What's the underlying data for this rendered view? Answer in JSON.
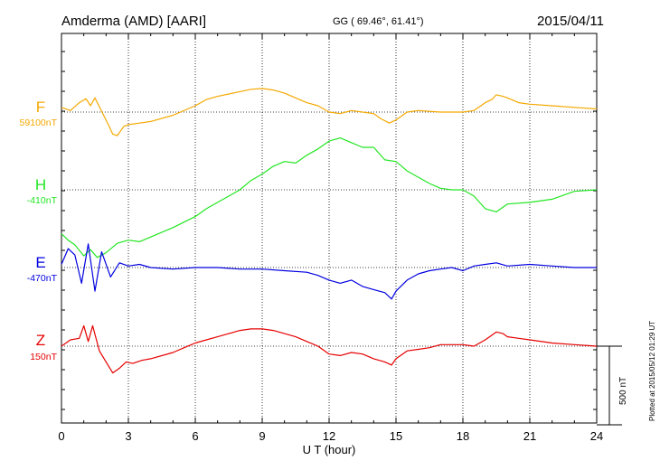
{
  "header": {
    "station": "Amderma (AMD)  [AARI]",
    "coords": "GG ( 69.46°,  61.41°)",
    "date": "2015/04/11"
  },
  "side_note": "Plotted at 2015/05/12 01:29 UT",
  "chart_data": {
    "type": "line",
    "xlabel": "U T (hour)",
    "xlim": [
      0,
      24
    ],
    "x_ticks": [
      0,
      3,
      6,
      9,
      12,
      15,
      18,
      21,
      24
    ],
    "scale_bar_label": "500 nT",
    "scale_bar_nT": 500,
    "grid": true,
    "series": [
      {
        "name": "F",
        "baseline_label": "59100nT",
        "color": "#f5a800",
        "x": [
          0,
          0.4,
          0.8,
          1.1,
          1.3,
          1.5,
          1.8,
          2.1,
          2.3,
          2.5,
          2.8,
          3.0,
          3.5,
          4,
          5,
          6,
          6.5,
          7,
          8,
          8.5,
          9,
          9.5,
          10,
          10.5,
          11,
          11.5,
          12,
          12.5,
          13,
          13.5,
          14,
          14.3,
          14.7,
          15,
          15.5,
          16,
          17,
          18,
          18.5,
          19,
          19.3,
          19.5,
          19.8,
          20,
          20.5,
          21,
          22,
          23,
          24
        ],
        "y": [
          30,
          10,
          60,
          85,
          40,
          90,
          5,
          -80,
          -140,
          -150,
          -90,
          -80,
          -70,
          -60,
          -20,
          40,
          80,
          100,
          130,
          145,
          150,
          140,
          120,
          90,
          60,
          40,
          0,
          -10,
          10,
          0,
          -10,
          -40,
          -70,
          -50,
          0,
          10,
          0,
          0,
          10,
          60,
          80,
          110,
          100,
          90,
          60,
          50,
          40,
          30,
          20
        ]
      },
      {
        "name": "H",
        "baseline_label": "-410nT",
        "color": "#22e622",
        "x": [
          0,
          0.3,
          0.6,
          1.0,
          1.3,
          1.6,
          2.0,
          2.5,
          3.0,
          3.5,
          4,
          5,
          6,
          6.5,
          7,
          7.5,
          8,
          8.5,
          9,
          9.5,
          10,
          10.5,
          11,
          11.5,
          12,
          12.5,
          13,
          13.5,
          14,
          14.5,
          15,
          15.5,
          16,
          16.5,
          17,
          17.5,
          18,
          18.5,
          19,
          19.5,
          20,
          21,
          22,
          23,
          24
        ],
        "y": [
          -280,
          -320,
          -350,
          -420,
          -380,
          -430,
          -400,
          -340,
          -320,
          -330,
          -300,
          -240,
          -170,
          -120,
          -80,
          -40,
          0,
          60,
          100,
          150,
          180,
          170,
          220,
          260,
          310,
          330,
          300,
          270,
          270,
          190,
          180,
          120,
          80,
          40,
          10,
          0,
          0,
          -40,
          -120,
          -140,
          -90,
          -80,
          -60,
          -10,
          0
        ]
      },
      {
        "name": "E",
        "baseline_label": "-470nT",
        "color": "#0000e0",
        "x": [
          0,
          0.3,
          0.6,
          0.9,
          1.2,
          1.5,
          1.8,
          2.2,
          2.6,
          3.0,
          3.5,
          4,
          5,
          6,
          7,
          8,
          9,
          10,
          11,
          11.5,
          12,
          12.5,
          13,
          13.5,
          14,
          14.5,
          14.8,
          15,
          15.5,
          16,
          16.5,
          17,
          17.5,
          18,
          18.5,
          19,
          19.5,
          20,
          21,
          22,
          23,
          24
        ],
        "y": [
          20,
          120,
          80,
          -100,
          150,
          -150,
          100,
          -60,
          30,
          10,
          20,
          0,
          -10,
          0,
          0,
          -10,
          -10,
          -20,
          -30,
          -50,
          -80,
          -100,
          -80,
          -120,
          -140,
          -160,
          -200,
          -150,
          -80,
          -40,
          -20,
          -10,
          0,
          -20,
          10,
          20,
          30,
          10,
          20,
          10,
          0,
          0
        ]
      },
      {
        "name": "Z",
        "baseline_label": "150nT",
        "color": "#e60000",
        "x": [
          0,
          0.4,
          0.8,
          1.0,
          1.2,
          1.4,
          1.7,
          2.0,
          2.3,
          2.6,
          2.9,
          3.2,
          3.6,
          4,
          5,
          5.5,
          6,
          6.5,
          7,
          7.5,
          8,
          8.5,
          9,
          9.5,
          10,
          10.5,
          11,
          11.5,
          12,
          12.5,
          13,
          13.5,
          14,
          14.5,
          14.8,
          15,
          15.5,
          16,
          16.5,
          17,
          17.5,
          18,
          18.5,
          19,
          19.2,
          19.5,
          19.8,
          20,
          20.5,
          21,
          22,
          23,
          24
        ],
        "y": [
          0,
          40,
          50,
          130,
          30,
          130,
          -30,
          -100,
          -170,
          -140,
          -100,
          -110,
          -90,
          -80,
          -40,
          -10,
          20,
          40,
          60,
          80,
          100,
          110,
          110,
          100,
          80,
          60,
          30,
          0,
          -50,
          -60,
          -40,
          -50,
          -80,
          -100,
          -120,
          -80,
          -30,
          -20,
          -10,
          10,
          10,
          10,
          0,
          40,
          60,
          90,
          80,
          60,
          50,
          40,
          20,
          10,
          0
        ]
      }
    ]
  }
}
